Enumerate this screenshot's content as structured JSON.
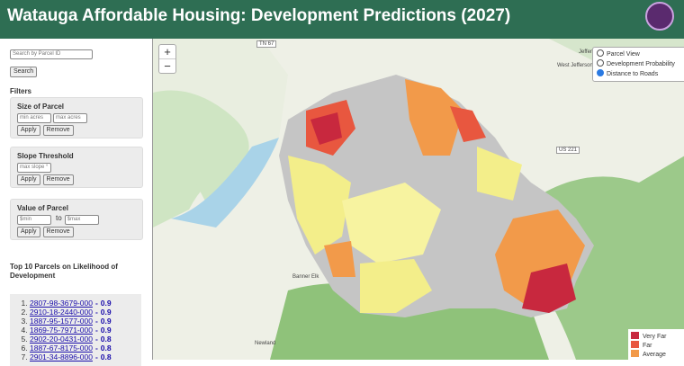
{
  "header": {
    "title": "Watauga Affordable Housing: Development Predictions (2027)"
  },
  "sidebar": {
    "search_placeholder": "Search by Parcel ID",
    "search_button": "Search",
    "filters_heading": "Filters",
    "filters": [
      {
        "title": "Size of Parcel",
        "inputs": [
          "min acres",
          "max acres"
        ],
        "buttons": [
          "Apply",
          "Remove"
        ]
      },
      {
        "title": "Slope Threshold",
        "inputs": [
          "max slope °"
        ],
        "buttons": [
          "Apply",
          "Remove"
        ]
      },
      {
        "title": "Value of Parcel",
        "inputs": [
          "$min",
          "$max"
        ],
        "joiner": "to",
        "buttons": [
          "Apply",
          "Remove"
        ]
      }
    ],
    "top_heading": "Top 10 Parcels on Likelihood of Development",
    "score_separator": "-",
    "top_parcels": [
      {
        "id": "2807-98-3679-000",
        "score": 0.9
      },
      {
        "id": "2910-18-2440-000",
        "score": 0.9
      },
      {
        "id": "1887-95-1577-000",
        "score": 0.9
      },
      {
        "id": "1869-75-7971-000",
        "score": 0.9
      },
      {
        "id": "2902-20-0431-000",
        "score": 0.8
      },
      {
        "id": "1887-67-8175-000",
        "score": 0.8
      },
      {
        "id": "2901-34-8896-000",
        "score": 0.8
      }
    ]
  },
  "map": {
    "zoom_in": "+",
    "zoom_out": "−",
    "layers": [
      "Parcel View",
      "Development Probability",
      "Distance to Roads"
    ],
    "selected_layer": 2,
    "labels": [
      "TN 67",
      "Jefferson",
      "West Jefferson",
      "US 221",
      "Banner Elk",
      "Newland"
    ],
    "legend": [
      {
        "label": "Very Far",
        "color": "#c8283e"
      },
      {
        "label": "Far",
        "color": "#e8573f"
      },
      {
        "label": "Average",
        "color": "#f29a4a"
      }
    ]
  }
}
